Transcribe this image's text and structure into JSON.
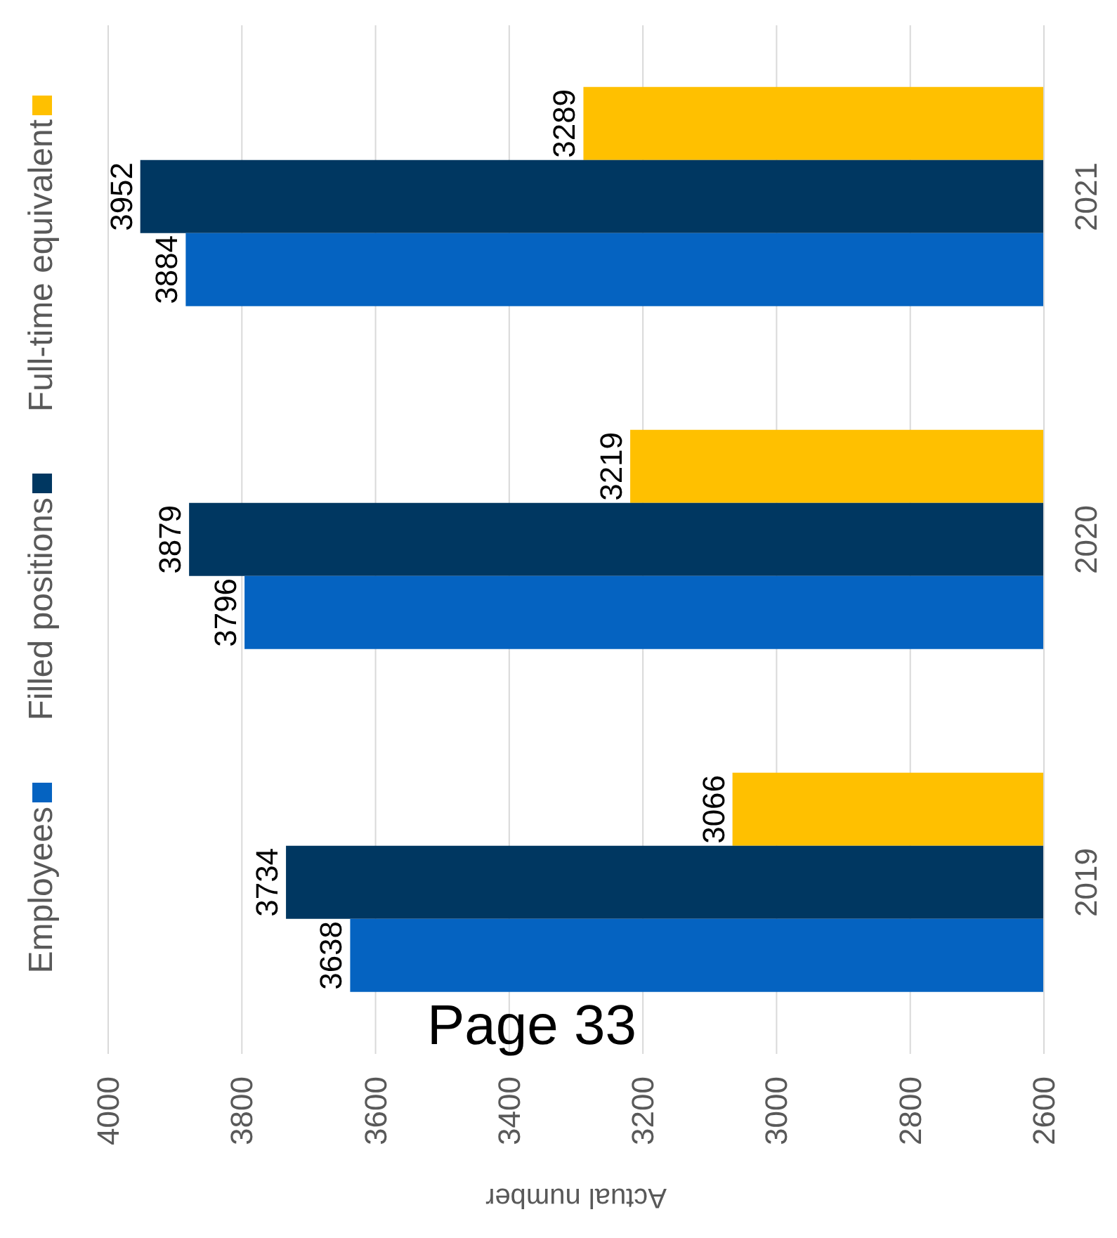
{
  "chart_data": {
    "type": "bar",
    "orientation": "horizontal",
    "xlabel": "Actual number",
    "categories": [
      "2021",
      "2020",
      "2019"
    ],
    "series": [
      {
        "name": "Employees",
        "color": "#0563c1",
        "values": [
          3884,
          3796,
          3638
        ]
      },
      {
        "name": "Filled positions",
        "color": "#003761",
        "values": [
          3952,
          3879,
          3734
        ]
      },
      {
        "name": "Full-time equivalent",
        "color": "#ffc000",
        "values": [
          3289,
          3219,
          3066
        ]
      }
    ],
    "xlim": [
      4000,
      2600
    ],
    "xticks": [
      4000,
      3800,
      3600,
      3400,
      3200,
      3000,
      2800,
      2600
    ],
    "grid": "x",
    "legend": "left",
    "data_labels": true,
    "annotations": [
      "Page 33"
    ]
  }
}
